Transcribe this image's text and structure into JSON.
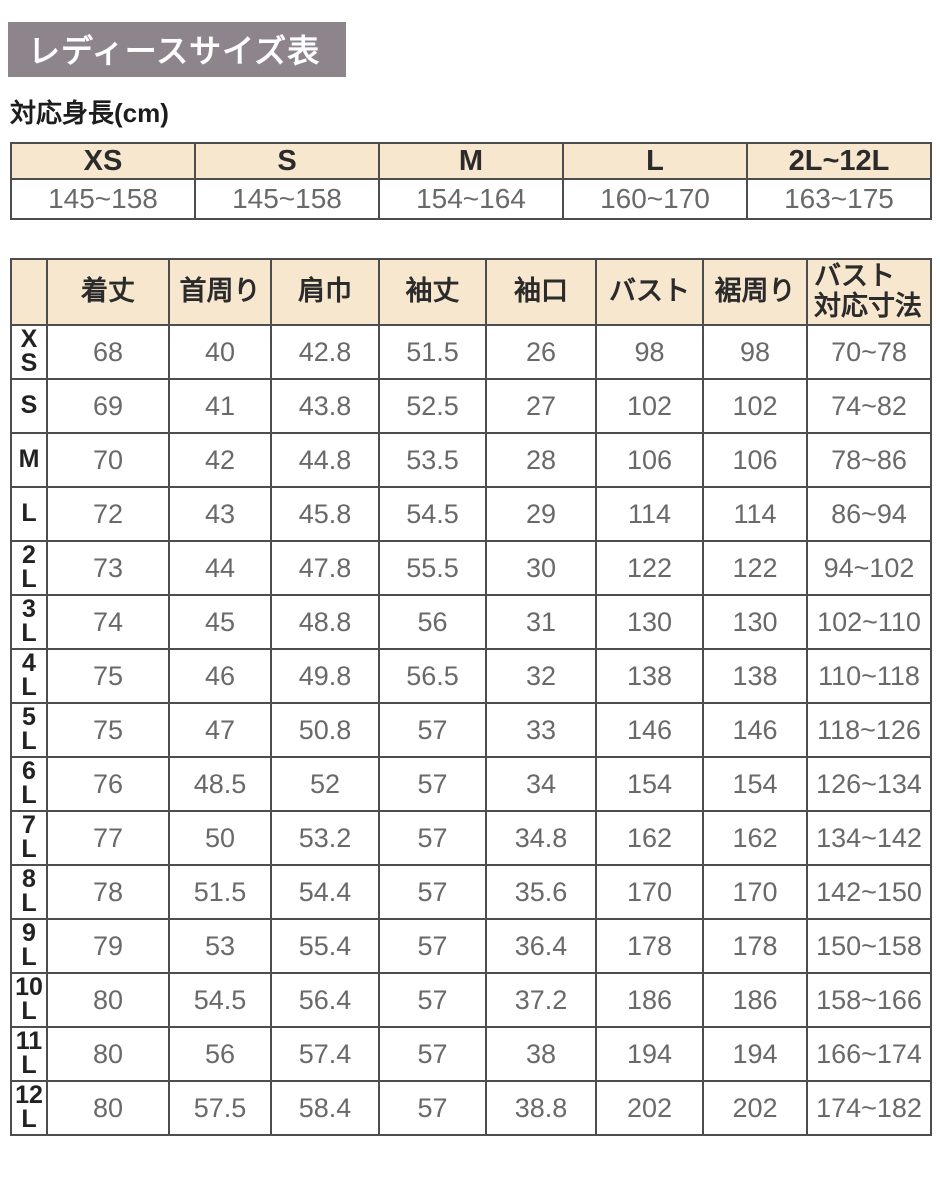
{
  "page_title": "レディースサイズ表",
  "height_section": {
    "title": "対応身長(cm)",
    "columns": [
      "XS",
      "S",
      "M",
      "L",
      "2L~12L"
    ],
    "values": [
      "145~158",
      "145~158",
      "154~164",
      "160~170",
      "163~175"
    ]
  },
  "size_table": {
    "corner_label": "",
    "columns": [
      "着丈",
      "首周り",
      "肩巾",
      "袖丈",
      "袖口",
      "バスト",
      "裾周り",
      "バスト\n対応寸法"
    ],
    "rows": [
      {
        "size": "XS",
        "values": [
          "68",
          "40",
          "42.8",
          "51.5",
          "26",
          "98",
          "98",
          "70~78"
        ]
      },
      {
        "size": "S",
        "values": [
          "69",
          "41",
          "43.8",
          "52.5",
          "27",
          "102",
          "102",
          "74~82"
        ]
      },
      {
        "size": "M",
        "values": [
          "70",
          "42",
          "44.8",
          "53.5",
          "28",
          "106",
          "106",
          "78~86"
        ]
      },
      {
        "size": "L",
        "values": [
          "72",
          "43",
          "45.8",
          "54.5",
          "29",
          "114",
          "114",
          "86~94"
        ]
      },
      {
        "size": "2L",
        "values": [
          "73",
          "44",
          "47.8",
          "55.5",
          "30",
          "122",
          "122",
          "94~102"
        ]
      },
      {
        "size": "3L",
        "values": [
          "74",
          "45",
          "48.8",
          "56",
          "31",
          "130",
          "130",
          "102~110"
        ]
      },
      {
        "size": "4L",
        "values": [
          "75",
          "46",
          "49.8",
          "56.5",
          "32",
          "138",
          "138",
          "110~118"
        ]
      },
      {
        "size": "5L",
        "values": [
          "75",
          "47",
          "50.8",
          "57",
          "33",
          "146",
          "146",
          "118~126"
        ]
      },
      {
        "size": "6L",
        "values": [
          "76",
          "48.5",
          "52",
          "57",
          "34",
          "154",
          "154",
          "126~134"
        ]
      },
      {
        "size": "7L",
        "values": [
          "77",
          "50",
          "53.2",
          "57",
          "34.8",
          "162",
          "162",
          "134~142"
        ]
      },
      {
        "size": "8L",
        "values": [
          "78",
          "51.5",
          "54.4",
          "57",
          "35.6",
          "170",
          "170",
          "142~150"
        ]
      },
      {
        "size": "9L",
        "values": [
          "79",
          "53",
          "55.4",
          "57",
          "36.4",
          "178",
          "178",
          "150~158"
        ]
      },
      {
        "size": "10L",
        "values": [
          "80",
          "54.5",
          "56.4",
          "57",
          "37.2",
          "186",
          "186",
          "158~166"
        ]
      },
      {
        "size": "11L",
        "values": [
          "80",
          "56",
          "57.4",
          "57",
          "38",
          "194",
          "194",
          "166~174"
        ]
      },
      {
        "size": "12L",
        "values": [
          "80",
          "57.5",
          "58.4",
          "57",
          "38.8",
          "202",
          "202",
          "174~182"
        ]
      }
    ]
  },
  "colors": {
    "title_bg": "#8e858c",
    "title_text": "#ffffff",
    "header_bg": "#f8e7cf",
    "border": "#4d4d4d",
    "value_text": "#696969",
    "label_text": "#222222"
  }
}
